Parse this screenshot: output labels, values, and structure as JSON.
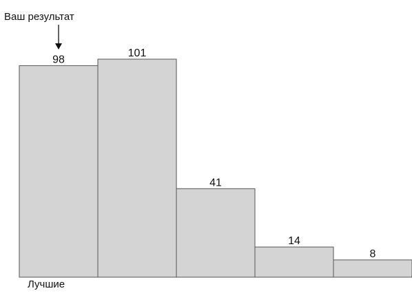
{
  "chart_data": {
    "type": "bar",
    "categories": [
      "",
      "",
      "",
      "",
      ""
    ],
    "values": [
      98,
      101,
      41,
      14,
      8
    ],
    "value_labels": [
      "98",
      "101",
      "41",
      "14",
      "8"
    ],
    "title": "",
    "xlabel": "",
    "ylabel": "",
    "ylim": [
      0,
      101
    ],
    "grid": false,
    "legend": "none",
    "bar_color": "#d4d4d4",
    "bar_edge_color": "#555555",
    "annotation": {
      "text": "Ваш результат",
      "bar_index": 0
    },
    "left_label": "Лучшие"
  }
}
